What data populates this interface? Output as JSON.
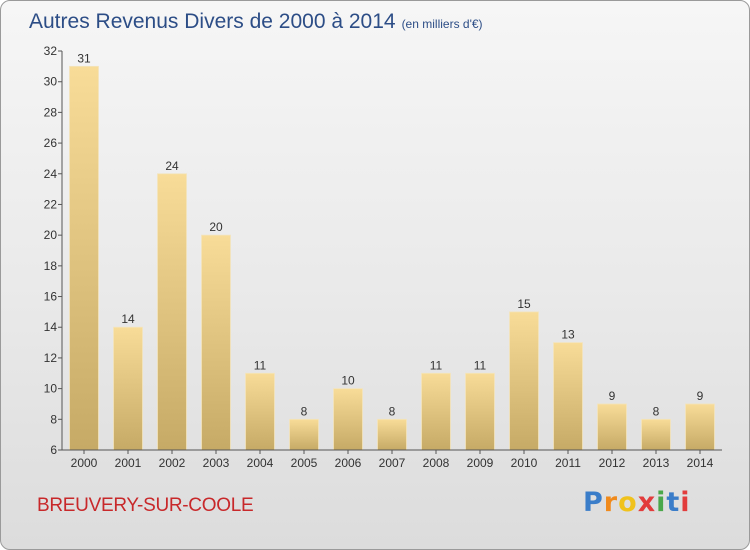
{
  "header": {
    "title": "Autres Revenus Divers de 2000 à 2014",
    "unit": "(en milliers d'€)"
  },
  "footer": {
    "commune": "BREUVERY-SUR-COOLE",
    "brand_letters": [
      "P",
      "r",
      "o",
      "x",
      "i",
      "t",
      "i"
    ],
    "brand_colors": [
      "#3a7dc9",
      "#f08a1c",
      "#f0c21c",
      "#e23c3c",
      "#4aa84a",
      "#3a7dc9",
      "#e23c3c"
    ]
  },
  "colors": {
    "bar_top": "#f8dc98",
    "bar_bottom": "#c6aa66",
    "axis": "#555555",
    "grid": "#d8d8d8",
    "title": "#2c4d86",
    "commune": "#c8282a"
  },
  "chart_data": {
    "type": "bar",
    "title": "Autres Revenus Divers de 2000 à 2014",
    "subtitle": "(en milliers d'€)",
    "xlabel": "",
    "ylabel": "",
    "categories": [
      "2000",
      "2001",
      "2002",
      "2003",
      "2004",
      "2005",
      "2006",
      "2007",
      "2008",
      "2009",
      "2010",
      "2011",
      "2012",
      "2013",
      "2014"
    ],
    "values": [
      31,
      14,
      24,
      20,
      11,
      8,
      10,
      8,
      11,
      11,
      15,
      13,
      9,
      8,
      9
    ],
    "ylim": [
      6,
      32
    ],
    "yticks": [
      6,
      8,
      10,
      12,
      14,
      16,
      18,
      20,
      22,
      24,
      26,
      28,
      30,
      32
    ],
    "grid": false,
    "legend": "none"
  }
}
